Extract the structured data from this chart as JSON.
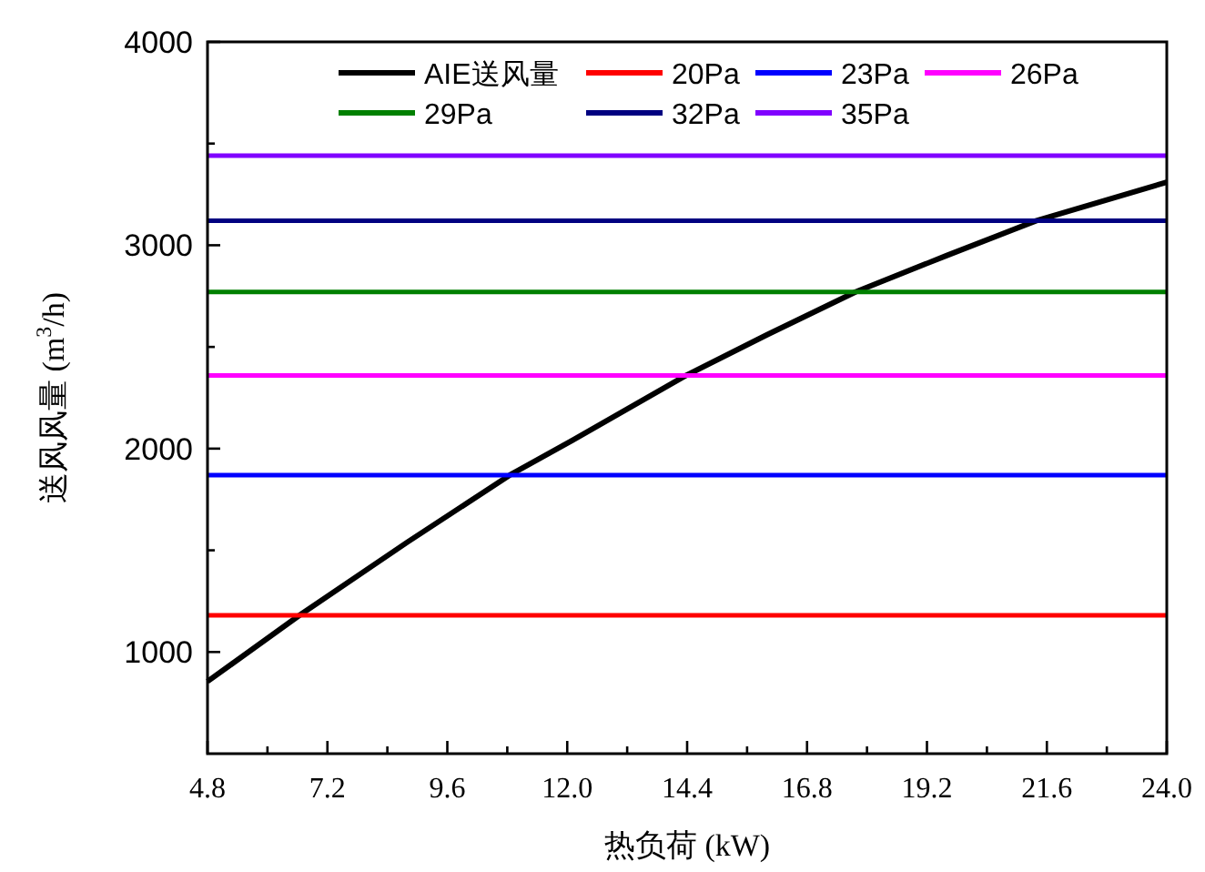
{
  "chart_data": {
    "type": "line",
    "xlabel": "热负荷 (kW)",
    "ylabel": "送风风量 (m$^{3}$/h)",
    "legend": "top",
    "grid": false,
    "xlim": [
      4.8,
      24.0
    ],
    "ylim": [
      500,
      4000
    ],
    "xticks": [
      4.8,
      7.2,
      9.6,
      {
        "value": 12.0,
        "label": "12.0"
      },
      14.4,
      16.8,
      19.2,
      21.6,
      {
        "value": 24.0,
        "label": "24.0"
      },
      {
        "value": 6.0,
        "label": null
      },
      {
        "value": 8.4,
        "label": null
      },
      {
        "value": 10.8,
        "label": null
      },
      {
        "value": 13.2,
        "label": null
      },
      {
        "value": 15.6,
        "label": null
      },
      {
        "value": 18.0,
        "label": null
      },
      {
        "value": 20.4,
        "label": null
      },
      {
        "value": 22.8,
        "label": null
      }
    ],
    "yticks": [
      1000,
      2000,
      3000,
      4000,
      {
        "value": 1500,
        "label": null
      },
      {
        "value": 2500,
        "label": null
      },
      {
        "value": 3500,
        "label": null
      }
    ],
    "series": [
      {
        "name": "AIE送风量",
        "color": "#000000",
        "x": [
          4.8,
          6.64,
          8.8,
          10.85,
          12.1,
          14.38,
          16.0,
          17.77,
          19.6,
          21.38,
          24.0
        ],
        "values": [
          855,
          1180,
          1540,
          1870,
          2040,
          2360,
          2560,
          2770,
          2950,
          3120,
          3310
        ]
      },
      {
        "name": "20Pa",
        "color": "#ff0000",
        "x": [
          4.8,
          24.0
        ],
        "values": [
          1180,
          1180
        ]
      },
      {
        "name": "23Pa",
        "color": "#0000ff",
        "x": [
          4.8,
          24.0
        ],
        "values": [
          1870,
          1870
        ]
      },
      {
        "name": "26Pa",
        "color": "#ff00ff",
        "x": [
          4.8,
          24.0
        ],
        "values": [
          2360,
          2360
        ]
      },
      {
        "name": "29Pa",
        "color": "#008000",
        "x": [
          4.8,
          24.0
        ],
        "values": [
          2770,
          2770
        ]
      },
      {
        "name": "32Pa",
        "color": "#000080",
        "x": [
          4.8,
          24.0
        ],
        "values": [
          3120,
          3120
        ]
      },
      {
        "name": "35Pa",
        "color": "#8000ff",
        "x": [
          4.8,
          24.0
        ],
        "values": [
          3440,
          3440
        ]
      }
    ]
  }
}
